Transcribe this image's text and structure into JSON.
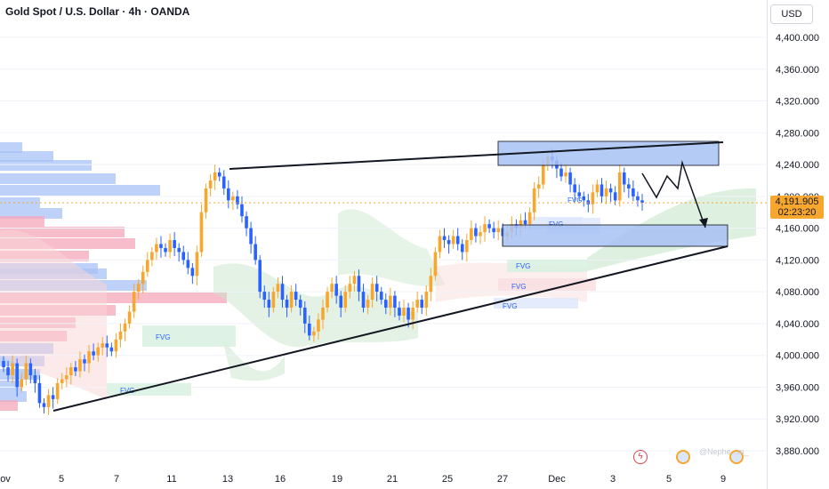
{
  "title": "Gold Spot / U.S. Dollar · 4h · OANDA",
  "currency": "USD",
  "current_price": "4,191.905",
  "countdown": "02:23:20",
  "watermark": "@Nephe...m_",
  "colors": {
    "bull": "#f7a62e",
    "bear": "#2962ff",
    "zone": "#a8c2f5",
    "zone_border": "#131722",
    "fvg_label": "#2962ff",
    "trendline": "#131722",
    "cloud_green": "#c8e6c9",
    "cloud_red": "#f9d5d5",
    "volume_blue": "#a8c2f5",
    "volume_pink": "#f4a7b9"
  },
  "chart_data": {
    "type": "candlestick",
    "title": "Gold Spot / U.S. Dollar · 4h · OANDA",
    "ylim": [
      3860,
      4420
    ],
    "y_ticks": [
      "4,400.000",
      "4,360.000",
      "4,320.000",
      "4,280.000",
      "4,240.000",
      "4,200.000",
      "4,160.000",
      "4,120.000",
      "4,080.000",
      "4,040.000",
      "4,000.000",
      "3,960.000",
      "3,920.000",
      "3,880.000"
    ],
    "x_ticks": [
      "ov",
      "5",
      "7",
      "11",
      "13",
      "16",
      "19",
      "21",
      "25",
      "27",
      "Dec",
      "3",
      "5",
      "9"
    ],
    "fvg_labels": [
      "FVG",
      "FVG",
      "FVG",
      "FVG",
      "FVG",
      "FVG",
      "FVG"
    ],
    "close_series": [
      3985,
      3975,
      3990,
      3960,
      3970,
      3990,
      3975,
      3965,
      3940,
      3935,
      3950,
      3945,
      3965,
      3970,
      3975,
      3985,
      3980,
      3995,
      3990,
      4005,
      4000,
      4010,
      4015,
      4010,
      4005,
      4020,
      4030,
      4040,
      4055,
      4080,
      4090,
      4105,
      4120,
      4130,
      4140,
      4135,
      4130,
      4145,
      4135,
      4130,
      4120,
      4110,
      4100,
      4130,
      4180,
      4210,
      4220,
      4230,
      4225,
      4210,
      4195,
      4200,
      4190,
      4175,
      4160,
      4140,
      4120,
      4080,
      4070,
      4060,
      4080,
      4090,
      4070,
      4060,
      4080,
      4070,
      4060,
      4040,
      4025,
      4030,
      4045,
      4060,
      4080,
      4090,
      4075,
      4060,
      4080,
      4090,
      4100,
      4080,
      4060,
      4070,
      4090,
      4080,
      4070,
      4060,
      4075,
      4060,
      4050,
      4060,
      4045,
      4060,
      4070,
      4060,
      4080,
      4100,
      4130,
      4150,
      4145,
      4140,
      4150,
      4140,
      4130,
      4145,
      4160,
      4150,
      4155,
      4165,
      4160,
      4155,
      4160,
      4150,
      4155,
      4165,
      4160,
      4170,
      4165,
      4180,
      4210,
      4215,
      4240,
      4250,
      4245,
      4235,
      4225,
      4230,
      4215,
      4205,
      4200,
      4195,
      4190,
      4205,
      4215,
      4200,
      4210,
      4205,
      4195,
      4230,
      4215,
      4210,
      4200,
      4195,
      4192
    ],
    "zones": [
      {
        "top": 4285,
        "bottom": 4255
      },
      {
        "top": 4165,
        "bottom": 4137
      }
    ],
    "trendlines": [
      {
        "from": [
          3,
          3930
        ],
        "to": [
          12.5,
          4270
        ]
      },
      {
        "from": [
          3,
          3930
        ],
        "to": [
          12.5,
          4138
        ]
      }
    ]
  }
}
